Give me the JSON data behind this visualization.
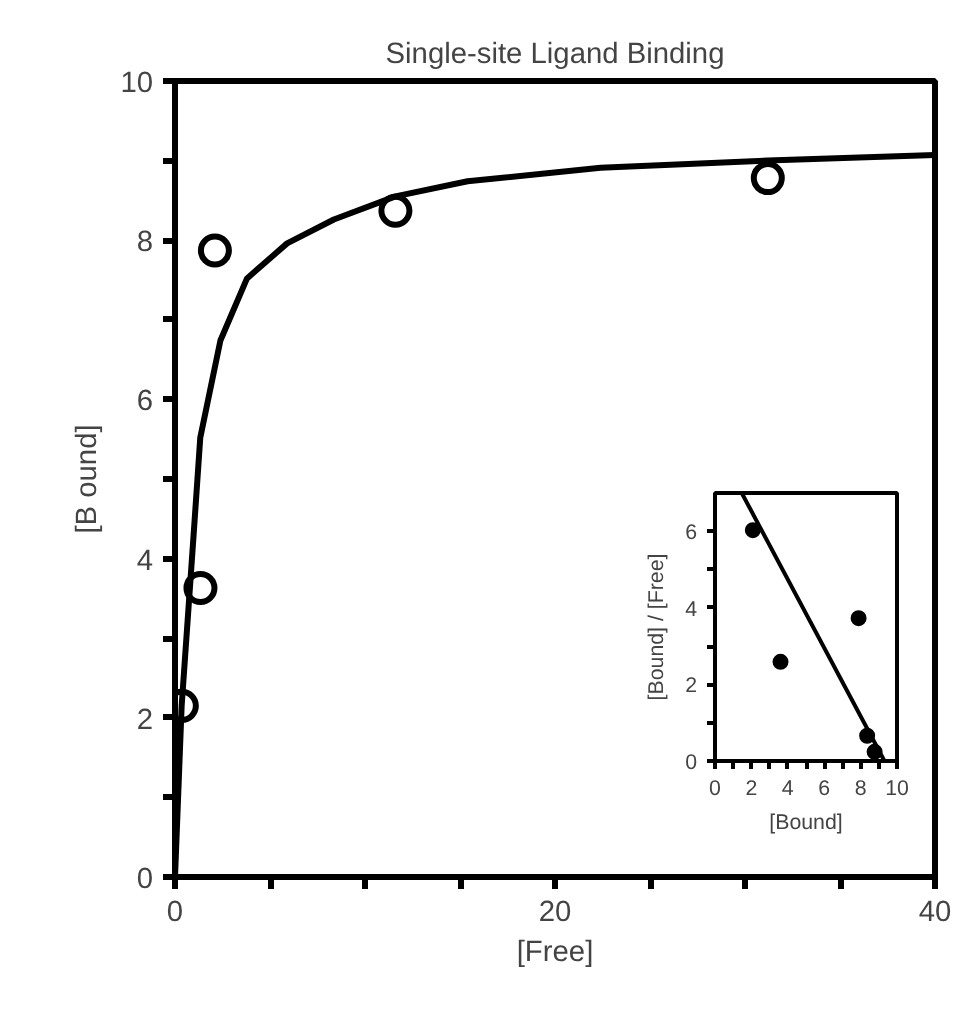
{
  "chart_data": [
    {
      "type": "scatter",
      "title": "Single-site Ligand Binding",
      "xlabel": "[Free]",
      "ylabel": "[B ound]",
      "xlim": [
        0,
        40
      ],
      "ylim": [
        0,
        10
      ],
      "xticks": [
        0,
        {
          "value": 5,
          "label": null
        },
        {
          "value": 10,
          "label": null
        },
        {
          "value": 15,
          "label": null
        },
        20,
        {
          "value": 25,
          "label": null
        },
        {
          "value": 30,
          "label": null
        },
        {
          "value": 35,
          "label": null
        },
        40
      ],
      "yticks": [
        0,
        {
          "value": 1,
          "label": null
        },
        2,
        {
          "value": 3,
          "label": null
        },
        4,
        {
          "value": 5,
          "label": null
        },
        6,
        {
          "value": 7,
          "label": null
        },
        8,
        {
          "value": 9,
          "label": null
        },
        10
      ],
      "grid": false,
      "series": [
        {
          "marker": "circle",
          "color": "#000000",
          "x": [
            0.36,
            1.34,
            2.1,
            11.6,
            31.2
          ],
          "values": [
            2.15,
            3.63,
            7.87,
            8.37,
            8.78
          ]
        },
        {
          "type": "line",
          "marker": "none",
          "color": "#000000",
          "x": [
            0,
            0.35,
            0.98,
            1.33,
            2.39,
            3.79,
            5.9,
            8.36,
            11.6,
            15.4,
            22.4,
            31.2,
            40
          ],
          "values": [
            0,
            2.15,
            4.3,
            5.52,
            6.74,
            7.52,
            7.96,
            8.26,
            8.55,
            8.74,
            8.91,
            9.0,
            9.07
          ]
        }
      ]
    },
    {
      "type": "scatter",
      "xlabel": "[Bound]",
      "ylabel": "[Bound] / [Free]",
      "xlim": [
        0,
        10
      ],
      "ylim": [
        0,
        7
      ],
      "xticks": [
        0,
        {
          "value": 1,
          "label": null
        },
        2,
        {
          "value": 3,
          "label": null
        },
        4,
        {
          "value": 5,
          "label": null
        },
        6,
        {
          "value": 7,
          "label": null
        },
        8,
        {
          "value": 9,
          "label": null
        },
        10
      ],
      "yticks": [
        0,
        {
          "value": 1,
          "label": null
        },
        2,
        {
          "value": 3,
          "label": null
        },
        4,
        {
          "value": 5,
          "label": null
        },
        6
      ],
      "grid": false,
      "series": [
        {
          "marker": "circle",
          "color": "#000000",
          "x": [
            2.08,
            3.6,
            7.89,
            8.36,
            8.77
          ],
          "values": [
            6.03,
            2.59,
            3.73,
            0.66,
            0.24
          ]
        },
        {
          "type": "line",
          "marker": "none",
          "color": "#000000",
          "x": [
            1.47,
            9.31
          ],
          "values": [
            7,
            0
          ]
        }
      ]
    }
  ]
}
